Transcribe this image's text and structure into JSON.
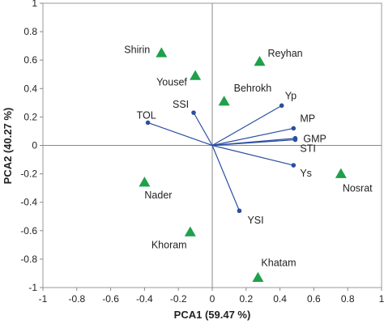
{
  "chart_data": {
    "type": "scatter",
    "xlabel": "PCA1 (59.47 %)",
    "ylabel": "PCA2 (40.27 %)",
    "xlim": [
      -1,
      1
    ],
    "ylim": [
      -1,
      1
    ],
    "x_ticks": [
      "-1",
      "-0.8",
      "-0.6",
      "-0.4",
      "-0.2",
      "0",
      "0.2",
      "0.4",
      "0.6",
      "0.8",
      "1"
    ],
    "y_ticks": [
      "1",
      "0.8",
      "0.6",
      "0.4",
      "0.2",
      "0",
      "-0.2",
      "-0.4",
      "-0.6",
      "-0.8",
      "-1"
    ],
    "grid": false,
    "genotypes": {
      "marker": "triangle",
      "color": "#1fa04b",
      "points": [
        {
          "name": "Shirin",
          "x": -0.3,
          "y": 0.65
        },
        {
          "name": "Yousef",
          "x": -0.1,
          "y": 0.49
        },
        {
          "name": "Reyhan",
          "x": 0.28,
          "y": 0.59
        },
        {
          "name": "Behrokh",
          "x": 0.07,
          "y": 0.31
        },
        {
          "name": "Nosrat",
          "x": 0.76,
          "y": -0.2
        },
        {
          "name": "Nader",
          "x": -0.4,
          "y": -0.26
        },
        {
          "name": "Khoram",
          "x": -0.13,
          "y": -0.61
        },
        {
          "name": "Khatam",
          "x": 0.27,
          "y": -0.93
        }
      ]
    },
    "indices": {
      "line_color": "#2b4ea2",
      "vectors": [
        {
          "name": "TOL",
          "x": -0.38,
          "y": 0.16
        },
        {
          "name": "SSI",
          "x": -0.11,
          "y": 0.23
        },
        {
          "name": "Yp",
          "x": 0.41,
          "y": 0.28
        },
        {
          "name": "MP",
          "x": 0.48,
          "y": 0.12
        },
        {
          "name": "GMP",
          "x": 0.49,
          "y": 0.05
        },
        {
          "name": "STI",
          "x": 0.49,
          "y": 0.04
        },
        {
          "name": "Ys",
          "x": 0.48,
          "y": -0.14
        },
        {
          "name": "YSI",
          "x": 0.16,
          "y": -0.46
        }
      ]
    }
  }
}
